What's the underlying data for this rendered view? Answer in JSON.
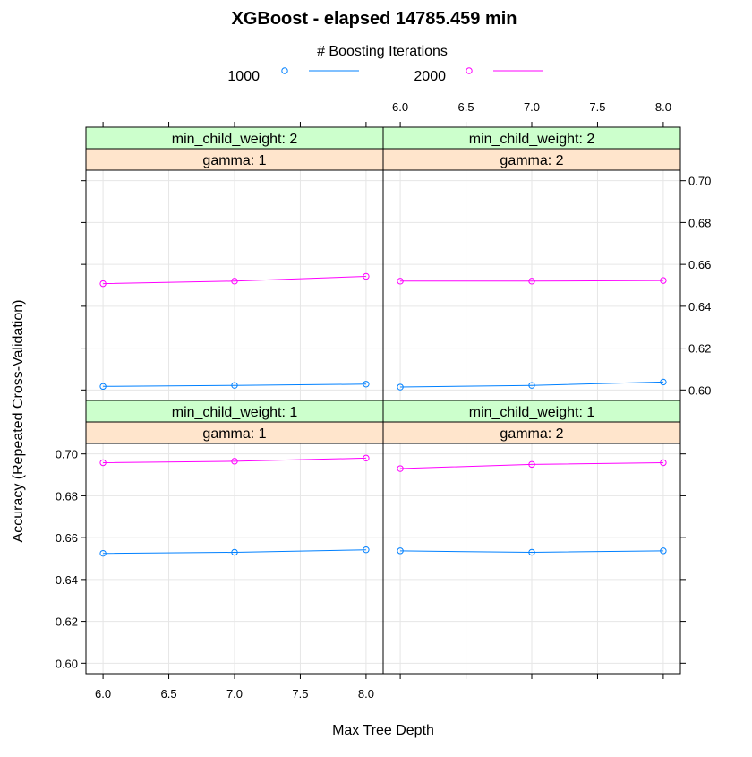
{
  "chart_data": {
    "type": "line",
    "title": "XGBoost - elapsed 14785.459  min",
    "xlabel": "Max Tree Depth",
    "ylabel": "Accuracy (Repeated Cross-Validation)",
    "legend": {
      "title": "# Boosting Iterations",
      "position": "top",
      "entries": [
        {
          "label": "1000",
          "color": "#0080ff"
        },
        {
          "label": "2000",
          "color": "#ff00ff"
        }
      ]
    },
    "xlim": [
      5.87,
      8.13
    ],
    "ylim": [
      0.595,
      0.705
    ],
    "x_ticks": [
      6.0,
      6.5,
      7.0,
      7.5,
      8.0
    ],
    "x_tick_labels": [
      "6.0",
      "6.5",
      "7.0",
      "7.5",
      "8.0"
    ],
    "y_ticks": [
      0.6,
      0.62,
      0.64,
      0.66,
      0.68,
      0.7
    ],
    "y_tick_labels": [
      "0.60",
      "0.62",
      "0.64",
      "0.66",
      "0.68",
      "0.70"
    ],
    "grid": true,
    "strip_colors": {
      "outer": "#ccffcc",
      "inner": "#ffe5cc"
    },
    "panels": [
      {
        "id": "p-mcw1-g1",
        "strips": [
          "min_child_weight: 1",
          "gamma: 1"
        ],
        "x": [
          6,
          7,
          8
        ],
        "series": [
          {
            "name": "1000",
            "values": [
              0.6525,
              0.653,
              0.6542
            ]
          },
          {
            "name": "2000",
            "values": [
              0.6958,
              0.6965,
              0.698
            ]
          }
        ]
      },
      {
        "id": "p-mcw1-g2",
        "strips": [
          "min_child_weight: 1",
          "gamma: 2"
        ],
        "x": [
          6,
          7,
          8
        ],
        "series": [
          {
            "name": "1000",
            "values": [
              0.6537,
              0.653,
              0.6537
            ]
          },
          {
            "name": "2000",
            "values": [
              0.693,
              0.695,
              0.6958
            ]
          }
        ]
      },
      {
        "id": "p-mcw2-g1",
        "strips": [
          "min_child_weight: 2",
          "gamma: 1"
        ],
        "x": [
          6,
          7,
          8
        ],
        "series": [
          {
            "name": "1000",
            "values": [
              0.6017,
              0.6022,
              0.6028
            ]
          },
          {
            "name": "2000",
            "values": [
              0.6508,
              0.652,
              0.6543
            ]
          }
        ]
      },
      {
        "id": "p-mcw2-g2",
        "strips": [
          "min_child_weight: 2",
          "gamma: 2"
        ],
        "x": [
          6,
          7,
          8
        ],
        "series": [
          {
            "name": "1000",
            "values": [
              0.6014,
              0.6022,
              0.6038
            ]
          },
          {
            "name": "2000",
            "values": [
              0.652,
              0.652,
              0.6523
            ]
          }
        ]
      }
    ]
  }
}
